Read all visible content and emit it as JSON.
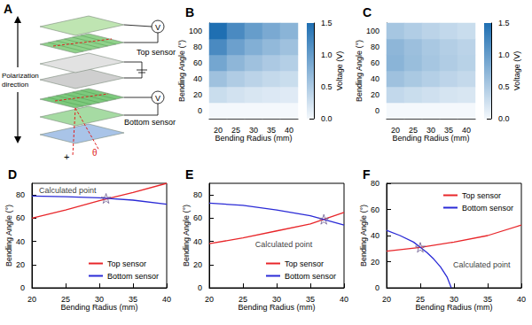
{
  "diagram": {
    "panel": "A",
    "labels": {
      "top_sensor": "Top sensor",
      "bottom_sensor": "Bottom sensor",
      "polarization": "Polarization direction",
      "voltmeter": "V",
      "angle": "θ",
      "terminal": "+"
    }
  },
  "chart_data": [
    {
      "title": "B",
      "type": "heatmap",
      "x_label": "Bending Radius (mm)",
      "y_label": "Bending Angle (°)",
      "x": [
        20,
        25,
        30,
        35,
        40
      ],
      "y": [
        0,
        20,
        40,
        60,
        80,
        100
      ],
      "cells": [
        [
          0,
          0,
          0,
          0,
          0
        ],
        [
          0.3,
          0.24,
          0.2,
          0.17,
          0.15
        ],
        [
          0.6,
          0.48,
          0.4,
          0.34,
          0.3
        ],
        [
          0.9,
          0.72,
          0.6,
          0.51,
          0.45
        ],
        [
          1.2,
          0.96,
          0.8,
          0.69,
          0.6
        ],
        [
          1.5,
          1.2,
          1.0,
          0.86,
          0.75
        ]
      ],
      "colorbar_label": "Voltage (V)",
      "colorbar_range": [
        0,
        1.5
      ],
      "colorbar_ticks": [
        {
          "value": 0,
          "label": "0.0"
        },
        {
          "value": 0.5,
          "label": "0.5"
        },
        {
          "value": 1,
          "label": "1.0"
        },
        {
          "value": 1.5,
          "label": "1.5"
        }
      ]
    },
    {
      "title": "C",
      "type": "heatmap",
      "x_label": "Bending Radius (mm)",
      "y_label": "Bending Angle (°)",
      "x": [
        20,
        25,
        30,
        35,
        40
      ],
      "y": [
        0,
        20,
        40,
        60,
        80,
        100
      ],
      "cells": [
        [
          0,
          0,
          0,
          0,
          0
        ],
        [
          0.35,
          0.3,
          0.26,
          0.22,
          0.2
        ],
        [
          0.6,
          0.52,
          0.45,
          0.39,
          0.34
        ],
        [
          0.75,
          0.64,
          0.55,
          0.48,
          0.42
        ],
        [
          0.72,
          0.62,
          0.53,
          0.46,
          0.4
        ],
        [
          0.55,
          0.47,
          0.4,
          0.35,
          0.3
        ]
      ],
      "colorbar_label": "Voltage (V)",
      "colorbar_range": [
        0,
        1.5
      ],
      "colorbar_ticks": [
        {
          "value": 0,
          "label": "0.0"
        },
        {
          "value": 0.5,
          "label": "0.5"
        },
        {
          "value": 1,
          "label": "1.0"
        },
        {
          "value": 1.5,
          "label": "1.5"
        }
      ]
    },
    {
      "title": "D",
      "type": "line",
      "x_label": "Bending Radius (mm)",
      "y_label": "Bending Angle (°)",
      "xlim": [
        20,
        40
      ],
      "xticks": [
        20,
        25,
        30,
        35,
        40
      ],
      "ylim": [
        0,
        90
      ],
      "yticks": [
        0,
        20,
        40,
        60,
        80
      ],
      "legend": "lower right",
      "series": [
        {
          "name": "Top sensor",
          "color": "#e8262a",
          "x": [
            20,
            25,
            30,
            35,
            40
          ],
          "values": [
            60,
            67,
            75,
            82,
            90
          ]
        },
        {
          "name": "Bottom sensor",
          "color": "#2b2bd6",
          "x": [
            20,
            25,
            30,
            35,
            40
          ],
          "values": [
            79,
            78.5,
            77.5,
            75.5,
            72
          ]
        }
      ],
      "annotations": [
        {
          "text": "Calculated point",
          "x": 31,
          "y": 77,
          "marker": "star"
        }
      ]
    },
    {
      "title": "E",
      "type": "line",
      "x_label": "Bending Radius (mm)",
      "y_label": "Bending Angle (°)",
      "xlim": [
        20,
        40
      ],
      "xticks": [
        20,
        25,
        30,
        35,
        40
      ],
      "ylim": [
        0,
        90
      ],
      "yticks": [
        0,
        20,
        40,
        60,
        80
      ],
      "legend": "lower right",
      "series": [
        {
          "name": "Top sensor",
          "color": "#e8262a",
          "x": [
            20,
            25,
            30,
            35,
            40
          ],
          "values": [
            38,
            43,
            49,
            55,
            65
          ]
        },
        {
          "name": "Bottom sensor",
          "color": "#2b2bd6",
          "x": [
            20,
            25,
            30,
            35,
            40
          ],
          "values": [
            73,
            71,
            67,
            62,
            54
          ]
        }
      ],
      "annotations": [
        {
          "text": "Calculated point",
          "x": 37,
          "y": 59,
          "marker": "star"
        }
      ]
    },
    {
      "title": "F",
      "type": "line",
      "x_label": "Bending Radius (mm)",
      "y_label": "Bending Angle (°)",
      "xlim": [
        20,
        40
      ],
      "xticks": [
        20,
        25,
        30,
        35,
        40
      ],
      "ylim": [
        0,
        80
      ],
      "yticks": [
        0,
        20,
        40,
        60,
        80
      ],
      "legend": "upper right",
      "series": [
        {
          "name": "Top sensor",
          "color": "#e8262a",
          "x": [
            20,
            25,
            30,
            35,
            40
          ],
          "values": [
            28,
            31,
            35,
            40,
            48
          ]
        },
        {
          "name": "Bottom sensor",
          "color": "#2b2bd6",
          "x": [
            20,
            22,
            24,
            25,
            26,
            27,
            28,
            29,
            29.6
          ],
          "values": [
            44,
            40,
            35,
            31,
            27,
            22,
            16,
            8,
            0
          ]
        }
      ],
      "annotations": [
        {
          "text": "Calculated point",
          "x": 25,
          "y": 31,
          "marker": "star"
        }
      ]
    }
  ]
}
